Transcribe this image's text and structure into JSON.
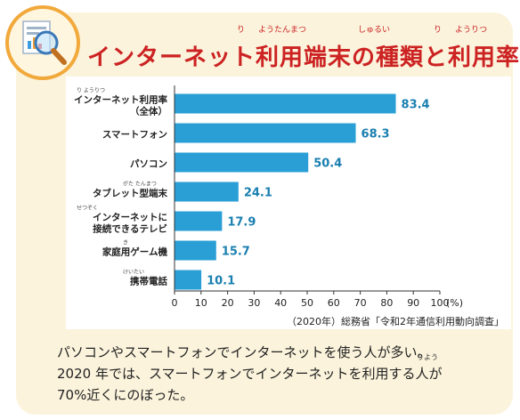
{
  "title": {
    "text": "インターネット利用端末の種類と利用率",
    "ruby": [
      "り",
      "ようたんまつ",
      "しゅるい",
      "り",
      "ようりつ"
    ]
  },
  "chart_data": {
    "type": "bar",
    "orientation": "horizontal",
    "categories": [
      {
        "label": "インターネット利用率",
        "sublabel": "（全体）",
        "ruby": "り ようりつ"
      },
      {
        "label": "スマートフォン",
        "sublabel": "",
        "ruby": ""
      },
      {
        "label": "パソコン",
        "sublabel": "",
        "ruby": ""
      },
      {
        "label": "タブレット型端末",
        "sublabel": "",
        "ruby": "がた たんまつ"
      },
      {
        "label": "インターネットに",
        "sublabel": "接続できるテレビ",
        "ruby": "せつぞく"
      },
      {
        "label": "家庭用ゲーム機",
        "sublabel": "",
        "ruby": "き"
      },
      {
        "label": "携帯電話",
        "sublabel": "",
        "ruby": "けいたい"
      }
    ],
    "values": [
      83.4,
      68.3,
      50.4,
      24.1,
      17.9,
      15.7,
      10.1
    ],
    "value_labels": [
      "83.4",
      "68.3",
      "50.4",
      "24.1",
      "17.9",
      "15.7",
      "10.1"
    ],
    "xlim": [
      0,
      100
    ],
    "ticks": [
      "0",
      "10",
      "20",
      "30",
      "40",
      "50",
      "60",
      "70",
      "80",
      "90",
      "100"
    ],
    "unit": "(%)",
    "source": "（2020年）総務省「令和2年通信利用動向調査」",
    "bar_color": "#2a9fd6",
    "label_color": "#1a7fb0",
    "grid": false
  },
  "caption": {
    "line1": "パソコンやスマートフォンでインターネットを使う人が多い。",
    "line2": "2020 年では、スマートフォンでインターネットを利用する人が",
    "line3": "70%近くにのぼった。",
    "ruby": "りよう"
  },
  "icon": "magnifier-chart-icon"
}
